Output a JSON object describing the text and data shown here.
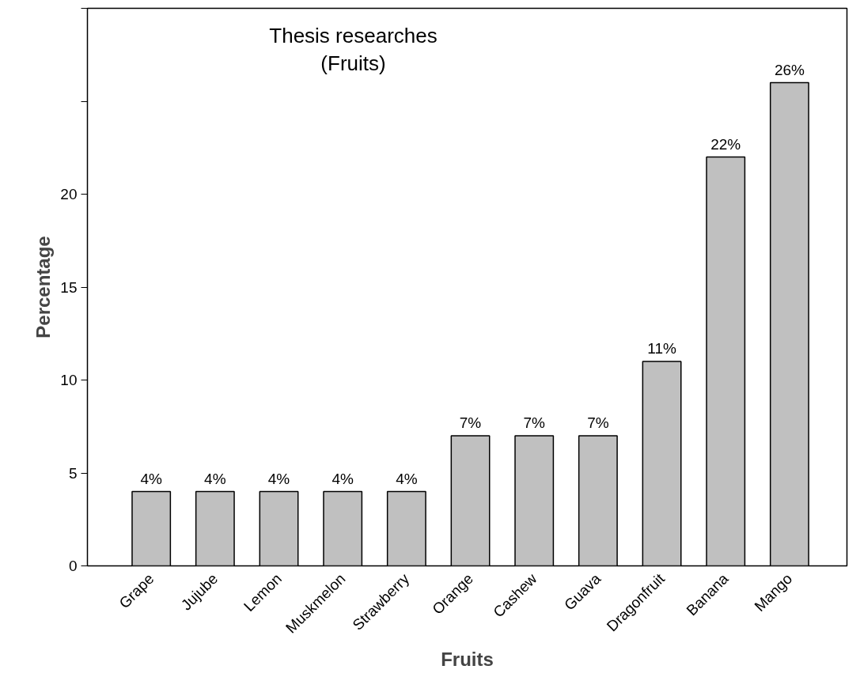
{
  "chart_data": {
    "type": "bar",
    "title": "Thesis researches\n(Fruits)",
    "xlabel": "Fruits",
    "ylabel": "Percentage",
    "categories": [
      "Grape",
      "Jujube",
      "Lemon",
      "Muskmelon",
      "Strawberry",
      "Orange",
      "Cashew",
      "Guava",
      "Dragonfruit",
      "Banana",
      "Mango"
    ],
    "values": [
      4,
      4,
      4,
      4,
      4,
      7,
      7,
      7,
      11,
      22,
      26
    ],
    "value_labels": [
      "4%",
      "4%",
      "4%",
      "4%",
      "4%",
      "7%",
      "7%",
      "7%",
      "11%",
      "22%",
      "26%"
    ],
    "color": "#c0c0c0",
    "ylim": [
      0,
      30
    ],
    "yticks": [
      0,
      5,
      10,
      15,
      20,
      {
        "value": 25,
        "label": null
      },
      {
        "value": 30,
        "label": null
      }
    ],
    "grid": false
  }
}
